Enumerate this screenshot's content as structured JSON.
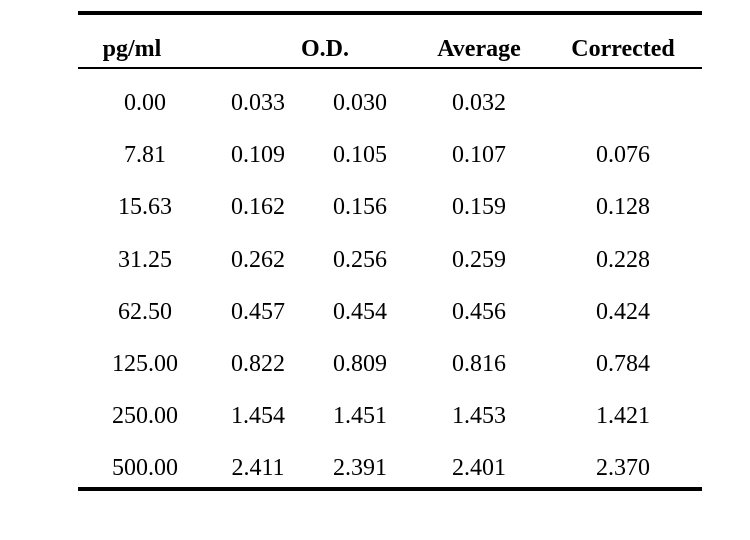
{
  "table": {
    "headers": {
      "concentration": "pg/ml",
      "od": "O.D.",
      "average": "Average",
      "corrected": "Corrected"
    },
    "rows": [
      {
        "concentration": "0.00",
        "od1": "0.033",
        "od2": "0.030",
        "average": "0.032",
        "corrected": ""
      },
      {
        "concentration": "7.81",
        "od1": "0.109",
        "od2": "0.105",
        "average": "0.107",
        "corrected": "0.076"
      },
      {
        "concentration": "15.63",
        "od1": "0.162",
        "od2": "0.156",
        "average": "0.159",
        "corrected": "0.128"
      },
      {
        "concentration": "31.25",
        "od1": "0.262",
        "od2": "0.256",
        "average": "0.259",
        "corrected": "0.228"
      },
      {
        "concentration": "62.50",
        "od1": "0.457",
        "od2": "0.454",
        "average": "0.456",
        "corrected": "0.424"
      },
      {
        "concentration": "125.00",
        "od1": "0.822",
        "od2": "0.809",
        "average": "0.816",
        "corrected": "0.784"
      },
      {
        "concentration": "250.00",
        "od1": "1.454",
        "od2": "1.451",
        "average": "1.453",
        "corrected": "1.421"
      },
      {
        "concentration": "500.00",
        "od1": "2.411",
        "od2": "2.391",
        "average": "2.401",
        "corrected": "2.370"
      }
    ]
  }
}
